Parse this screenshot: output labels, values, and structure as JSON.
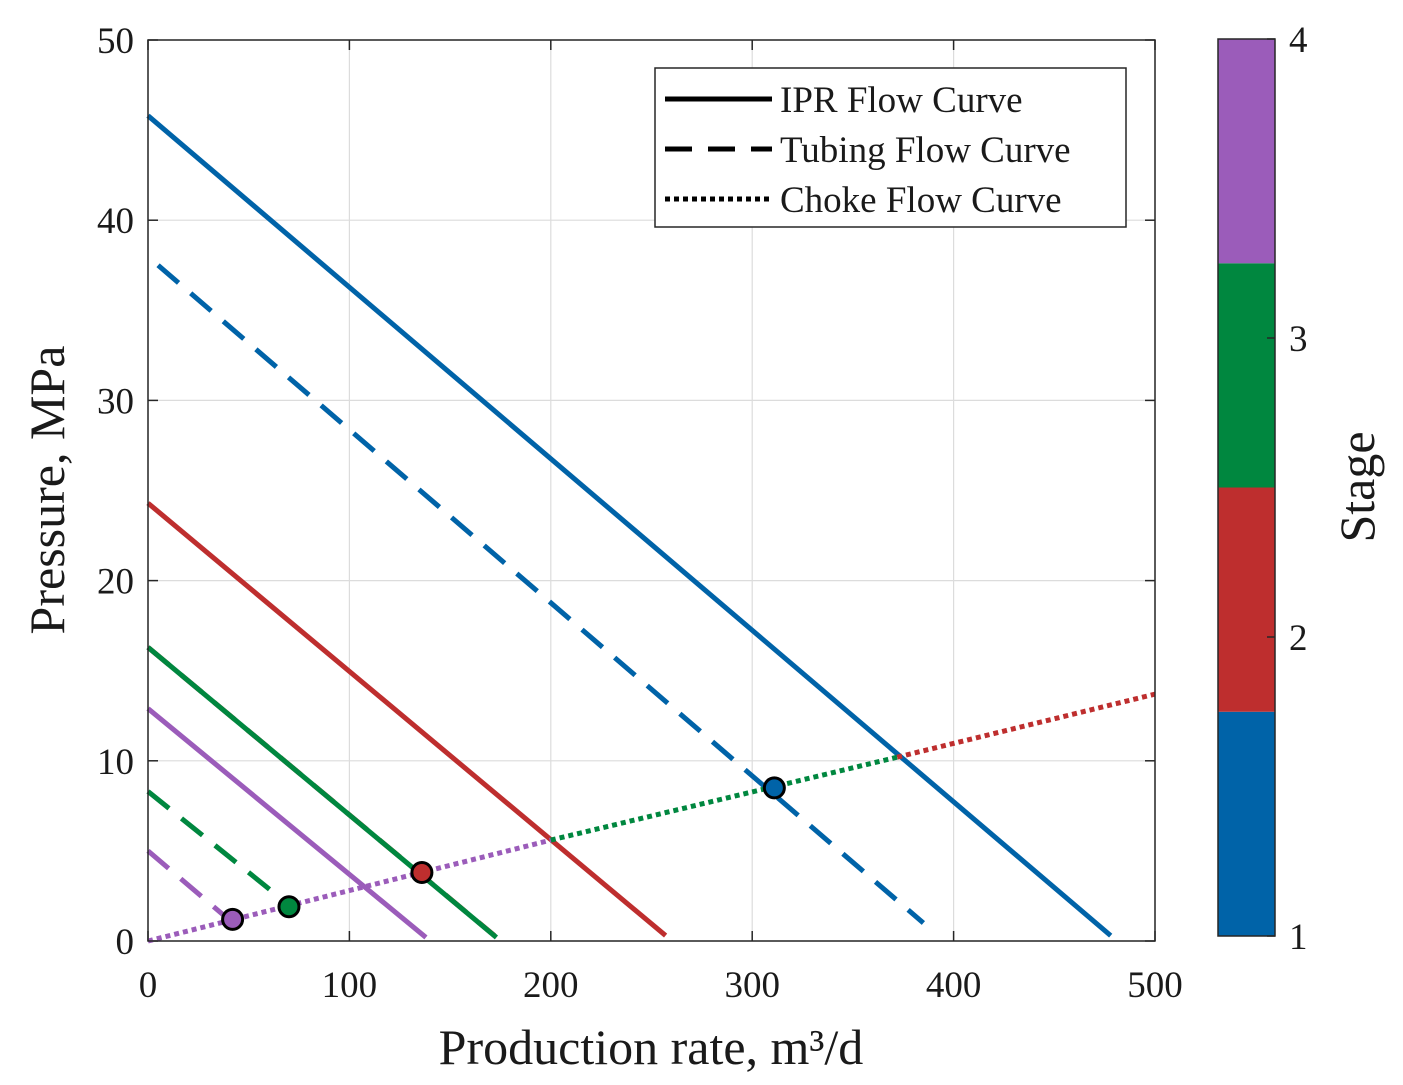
{
  "chart_data": {
    "type": "line",
    "title": "",
    "xlabel": "Production rate, m³/d",
    "ylabel": "Pressure, MPa",
    "xlim": [
      0,
      500
    ],
    "ylim": [
      0,
      50
    ],
    "xticks": [
      0,
      100,
      200,
      300,
      400,
      500
    ],
    "yticks": [
      0,
      10,
      20,
      30,
      40,
      50
    ],
    "grid": true,
    "colors": {
      "stage1": "#0063a8",
      "stage2": "#be2e2e",
      "stage3": "#00873f",
      "stage4": "#9b5cba",
      "frame": "#262626",
      "grid": "#dcdcdc"
    },
    "legend": {
      "placement": "top-right",
      "entries": [
        {
          "label": "IPR Flow Curve",
          "style": "solid"
        },
        {
          "label": "Tubing Flow Curve",
          "style": "dashed"
        },
        {
          "label": "Choke Flow Curve",
          "style": "dotted"
        }
      ]
    },
    "colorbar": {
      "label": "Stage",
      "ticks": [
        1,
        2,
        3,
        4
      ],
      "levels": [
        {
          "stage": 1,
          "color": "#0063a8"
        },
        {
          "stage": 2,
          "color": "#be2e2e"
        },
        {
          "stage": 3,
          "color": "#00873f"
        },
        {
          "stage": 4,
          "color": "#9b5cba"
        }
      ]
    },
    "series": [
      {
        "name": "IPR Flow Curve - Stage 1",
        "kind": "ipr",
        "stage": 1,
        "style": "solid",
        "x": [
          0,
          478
        ],
        "y": [
          45.8,
          0.3
        ]
      },
      {
        "name": "Tubing Flow Curve - Stage 1",
        "kind": "tubing",
        "stage": 1,
        "style": "dashed",
        "x": [
          5,
          385
        ],
        "y": [
          37.5,
          1.0
        ]
      },
      {
        "name": "IPR Flow Curve - Stage 2",
        "kind": "ipr",
        "stage": 2,
        "style": "solid",
        "x": [
          0,
          257
        ],
        "y": [
          24.3,
          0.3
        ]
      },
      {
        "name": "Tubing Flow Curve - Stage 2",
        "kind": "tubing",
        "stage": 2,
        "style": "dashed",
        "x": [
          0,
          172
        ],
        "y": [
          16.3,
          0.3
        ]
      },
      {
        "name": "IPR Flow Curve - Stage 3",
        "kind": "ipr",
        "stage": 3,
        "style": "solid",
        "x": [
          0,
          173
        ],
        "y": [
          16.3,
          0.2
        ]
      },
      {
        "name": "Tubing Flow Curve - Stage 3",
        "kind": "tubing",
        "stage": 3,
        "style": "dashed",
        "x": [
          0,
          70
        ],
        "y": [
          8.3,
          2.0
        ]
      },
      {
        "name": "IPR Flow Curve - Stage 4",
        "kind": "ipr",
        "stage": 4,
        "style": "solid",
        "x": [
          0,
          138
        ],
        "y": [
          12.9,
          0.2
        ]
      },
      {
        "name": "Tubing Flow Curve - Stage 4",
        "kind": "tubing",
        "stage": 4,
        "style": "dashed",
        "x": [
          0,
          40
        ],
        "y": [
          5.0,
          1.2
        ]
      },
      {
        "name": "Choke Flow Curve - Stage 4",
        "kind": "choke",
        "stage": 4,
        "style": "dotted",
        "x": [
          0,
          200
        ],
        "y": [
          0.0,
          5.6
        ]
      },
      {
        "name": "Choke Flow Curve - Stage 3",
        "kind": "choke",
        "stage": 3,
        "style": "dotted",
        "x": [
          200,
          372
        ],
        "y": [
          5.6,
          10.2
        ]
      },
      {
        "name": "Choke Flow Curve - Stage 2",
        "kind": "choke",
        "stage": 2,
        "style": "dotted",
        "x": [
          372,
          500
        ],
        "y": [
          10.2,
          13.7
        ]
      }
    ],
    "operating_points": [
      {
        "stage": 1,
        "x": 311,
        "y": 8.5
      },
      {
        "stage": 2,
        "x": 136,
        "y": 3.8
      },
      {
        "stage": 3,
        "x": 70,
        "y": 1.9
      },
      {
        "stage": 4,
        "x": 42,
        "y": 1.2
      }
    ]
  }
}
